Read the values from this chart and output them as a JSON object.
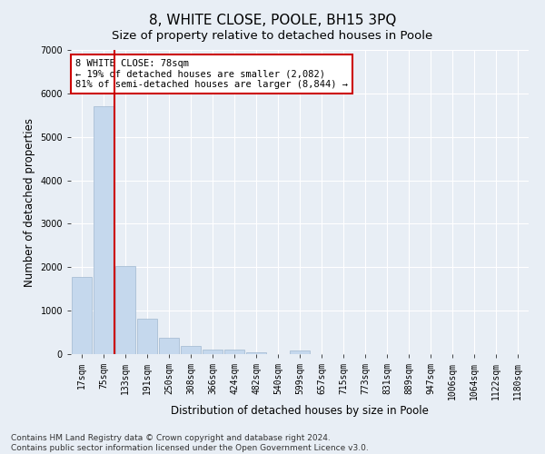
{
  "title": "8, WHITE CLOSE, POOLE, BH15 3PQ",
  "subtitle": "Size of property relative to detached houses in Poole",
  "xlabel": "Distribution of detached houses by size in Poole",
  "ylabel": "Number of detached properties",
  "bar_labels": [
    "17sqm",
    "75sqm",
    "133sqm",
    "191sqm",
    "250sqm",
    "308sqm",
    "366sqm",
    "424sqm",
    "482sqm",
    "540sqm",
    "599sqm",
    "657sqm",
    "715sqm",
    "773sqm",
    "831sqm",
    "889sqm",
    "947sqm",
    "1006sqm",
    "1064sqm",
    "1122sqm",
    "1180sqm"
  ],
  "bar_values": [
    1780,
    5700,
    2030,
    810,
    380,
    185,
    105,
    95,
    50,
    0,
    75,
    0,
    0,
    0,
    0,
    0,
    0,
    0,
    0,
    0,
    0
  ],
  "bar_color": "#c5d8ed",
  "bar_edge_color": "#a0b8d0",
  "annotation_line1": "8 WHITE CLOSE: 78sqm",
  "annotation_line2": "← 19% of detached houses are smaller (2,082)",
  "annotation_line3": "81% of semi-detached houses are larger (8,844) →",
  "vline_color": "#cc0000",
  "vline_x": 1.5,
  "ylim": [
    0,
    7000
  ],
  "yticks": [
    0,
    1000,
    2000,
    3000,
    4000,
    5000,
    6000,
    7000
  ],
  "footer_line1": "Contains HM Land Registry data © Crown copyright and database right 2024.",
  "footer_line2": "Contains public sector information licensed under the Open Government Licence v3.0.",
  "background_color": "#e8eef5",
  "plot_bg_color": "#e8eef5",
  "grid_color": "#ffffff",
  "title_fontsize": 11,
  "subtitle_fontsize": 9.5,
  "axis_label_fontsize": 8.5,
  "tick_fontsize": 7,
  "footer_fontsize": 6.5,
  "annot_fontsize": 7.5
}
